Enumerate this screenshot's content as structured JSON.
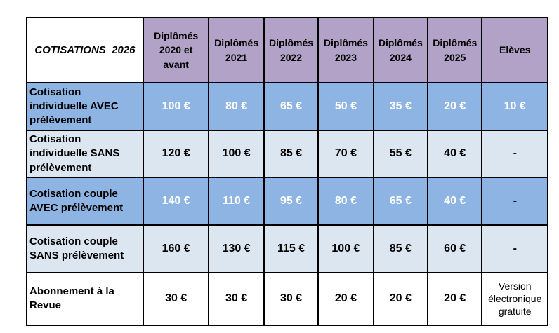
{
  "table": {
    "title": "COTISATIONS  2026",
    "columns": [
      "Diplômés 2020 et avant",
      "Diplômés 2021",
      "Diplômés 2022",
      "Diplômés 2023",
      "Diplômés 2024",
      "Diplômés 2025",
      "Elèves"
    ],
    "rows": [
      {
        "label": "Cotisation individuelle AVEC prélèvement",
        "style": "blue",
        "values": [
          "100 €",
          "80 €",
          "65 €",
          "50 €",
          "35 €",
          "20 €",
          "10 €"
        ]
      },
      {
        "label": "Cotisation individuelle SANS prélèvement",
        "style": "light",
        "values": [
          "120 €",
          "100 €",
          "85 €",
          "70 €",
          "55 €",
          "40 €",
          "-"
        ]
      },
      {
        "label": "Cotisation couple AVEC prélèvement",
        "style": "blue",
        "values": [
          "140 €",
          "110 €",
          "95 €",
          "80 €",
          "65 €",
          "40 €",
          "-"
        ]
      },
      {
        "label": "Cotisation couple SANS prélèvement",
        "style": "light",
        "values": [
          "160 €",
          "130 €",
          "115 €",
          "100 €",
          "85 €",
          "60 €",
          "-"
        ]
      },
      {
        "label": "Abonnement à la Revue",
        "style": "white",
        "values": [
          "30 €",
          "30 €",
          "30 €",
          "20 €",
          "20 €",
          "20 €",
          "Version électronique gratuite"
        ]
      }
    ],
    "colors": {
      "header_bg": "#b2a2c7",
      "row_blue_bg": "#8db4e2",
      "row_light_bg": "#dce6f1",
      "row_white_bg": "#ffffff",
      "border": "#000000",
      "value_on_blue": "#ffffff",
      "text": "#000000"
    }
  }
}
